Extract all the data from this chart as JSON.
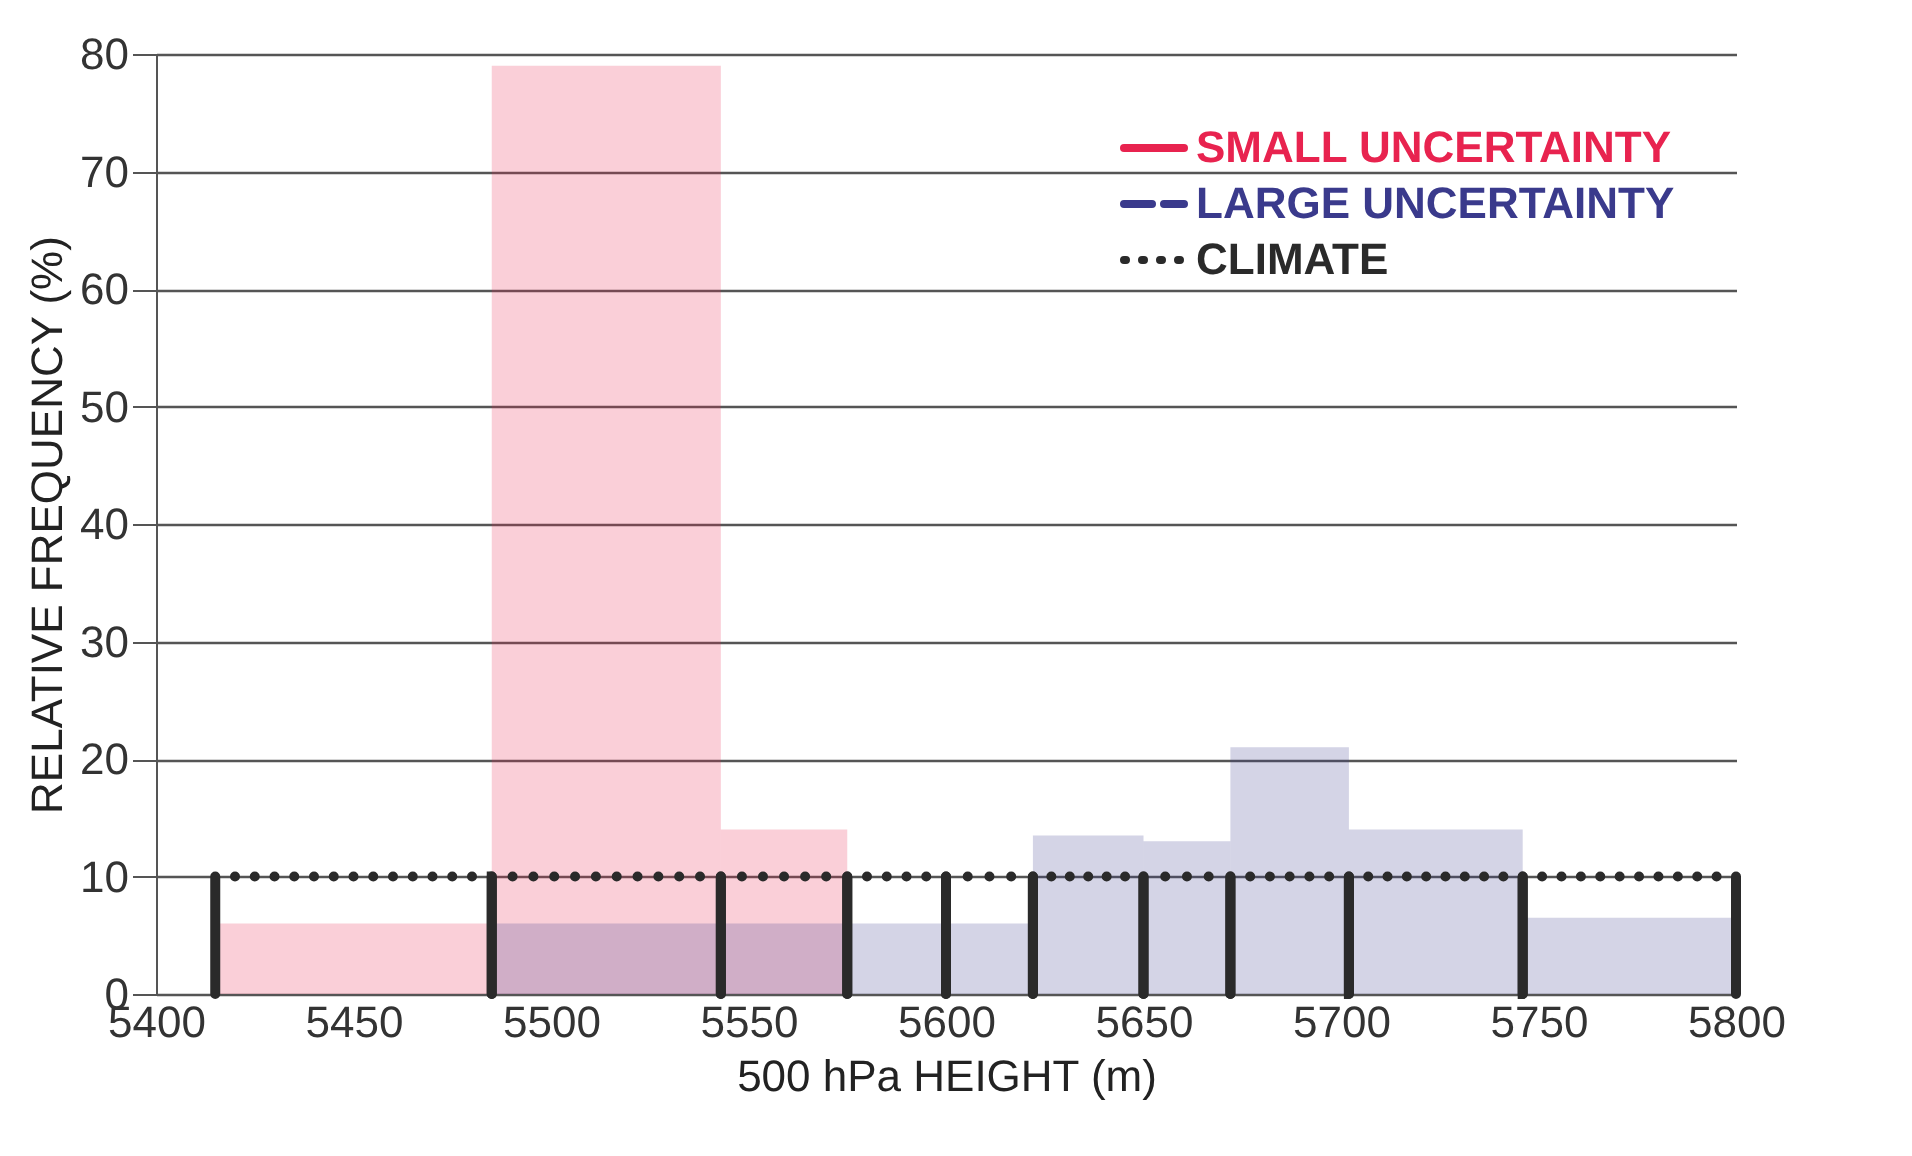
{
  "chart_data": {
    "type": "histogram",
    "xlabel": "500 hPa HEIGHT (m)",
    "ylabel": "RELATIVE FREQUENCY (%)",
    "xlim": [
      5400,
      5800
    ],
    "xticks": [
      5400,
      5450,
      5500,
      5550,
      5600,
      5650,
      5700,
      5750,
      5800
    ],
    "ylim": [
      0,
      80
    ],
    "yticks": [
      0,
      10,
      20,
      30,
      40,
      50,
      60,
      70,
      80
    ],
    "grid": "y",
    "legend": "top right",
    "bins": [
      5415,
      5485,
      5543,
      5575,
      5600,
      5622,
      5650,
      5672,
      5702,
      5746,
      5800
    ],
    "series": [
      {
        "name": "SMALL UNCERTAINTY",
        "color": "#e8234f",
        "line_style": "solid",
        "values": [
          6,
          79,
          14,
          null,
          null,
          null,
          null,
          null,
          null,
          null
        ]
      },
      {
        "name": "LARGE UNCERTAINTY",
        "color": "#3a3a8c",
        "line_style": "dashed",
        "values": [
          null,
          6,
          6,
          6,
          6,
          13.5,
          13,
          21,
          14,
          6.5
        ]
      },
      {
        "name": "CLIMATE",
        "color": "#2a2a2a",
        "line_style": "dotted",
        "values": [
          10,
          10,
          10,
          10,
          10,
          10,
          10,
          10,
          10,
          10
        ]
      }
    ]
  }
}
